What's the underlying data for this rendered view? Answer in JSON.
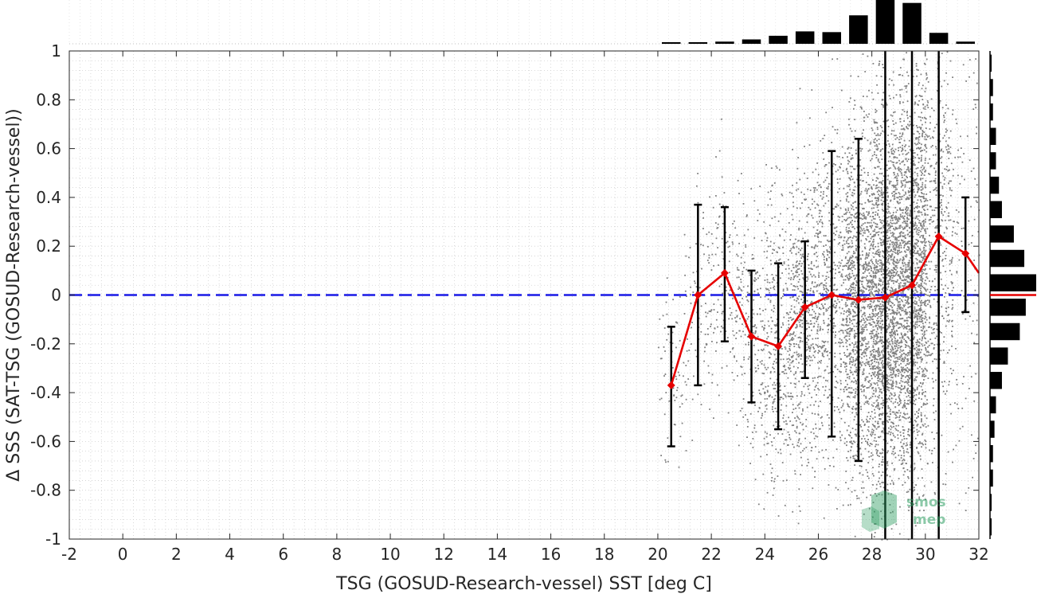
{
  "chart_data": {
    "type": "scatter",
    "xlabel": "TSG (GOSUD-Research-vessel) SST [deg C]",
    "ylabel": "Δ SSS (SAT-TSG (GOSUD-Research-vessel))",
    "xlim": [
      -2,
      32
    ],
    "ylim": [
      -1,
      1
    ],
    "xticks": [
      "-2",
      "0",
      "2",
      "4",
      "6",
      "8",
      "10",
      "12",
      "14",
      "16",
      "18",
      "20",
      "22",
      "24",
      "26",
      "28",
      "30",
      "32"
    ],
    "yticks": [
      "1",
      "0.8",
      "0.6",
      "0.4",
      "0.2",
      "0",
      "-0.2",
      "-0.4",
      "-0.6",
      "-0.8",
      "-1"
    ],
    "grid": "minor dotted",
    "reference_line": {
      "y": 0,
      "style": "dashed",
      "color": "#1a1ae6"
    },
    "binned_mean": {
      "color": "#e60000",
      "x": [
        20.5,
        21.5,
        22.5,
        23.5,
        24.5,
        25.5,
        26.5,
        27.5,
        28.5,
        29.5,
        30.5,
        31.5,
        32.0
      ],
      "y": [
        -0.37,
        0.0,
        0.09,
        -0.17,
        -0.21,
        -0.05,
        0.0,
        -0.02,
        -0.01,
        0.04,
        0.24,
        0.17,
        0.09
      ]
    },
    "error_bars": [
      {
        "x": 20.5,
        "low": -0.62,
        "high": -0.13
      },
      {
        "x": 21.5,
        "low": -0.37,
        "high": 0.37
      },
      {
        "x": 22.5,
        "low": -0.19,
        "high": 0.36
      },
      {
        "x": 23.5,
        "low": -0.44,
        "high": 0.1
      },
      {
        "x": 24.5,
        "low": -0.55,
        "high": 0.13
      },
      {
        "x": 25.5,
        "low": -0.34,
        "high": 0.22
      },
      {
        "x": 26.5,
        "low": -0.58,
        "high": 0.59
      },
      {
        "x": 27.5,
        "low": -0.68,
        "high": 0.64
      },
      {
        "x": 28.5,
        "low": -1.0,
        "high": 1.0
      },
      {
        "x": 29.5,
        "low": -1.0,
        "high": 1.0
      },
      {
        "x": 30.5,
        "low": -1.0,
        "high": 1.0
      },
      {
        "x": 31.5,
        "low": -0.07,
        "high": 0.4
      }
    ],
    "scatter_color": "#808080",
    "top_histogram": {
      "x": [
        20.5,
        21.5,
        22.5,
        23.5,
        24.5,
        25.5,
        26.5,
        27.5,
        28.5,
        29.5,
        30.5,
        31.5
      ],
      "counts": [
        1,
        2,
        3,
        6,
        11,
        17,
        16,
        39,
        60,
        56,
        15,
        3
      ]
    },
    "right_histogram": {
      "y": [
        0.95,
        0.85,
        0.75,
        0.65,
        0.55,
        0.45,
        0.35,
        0.25,
        0.15,
        0.05,
        -0.05,
        -0.15,
        -0.25,
        -0.35,
        -0.45,
        -0.55,
        -0.65,
        -0.75,
        -0.85,
        -0.95
      ],
      "counts": [
        1,
        2,
        2,
        4,
        4,
        6,
        8,
        16,
        23,
        31,
        24,
        20,
        12,
        8,
        4,
        3,
        2,
        2,
        1,
        1
      ],
      "median_marker_color": "#e60000"
    }
  },
  "logo": {
    "line1": "smos",
    "line2": "mep"
  }
}
